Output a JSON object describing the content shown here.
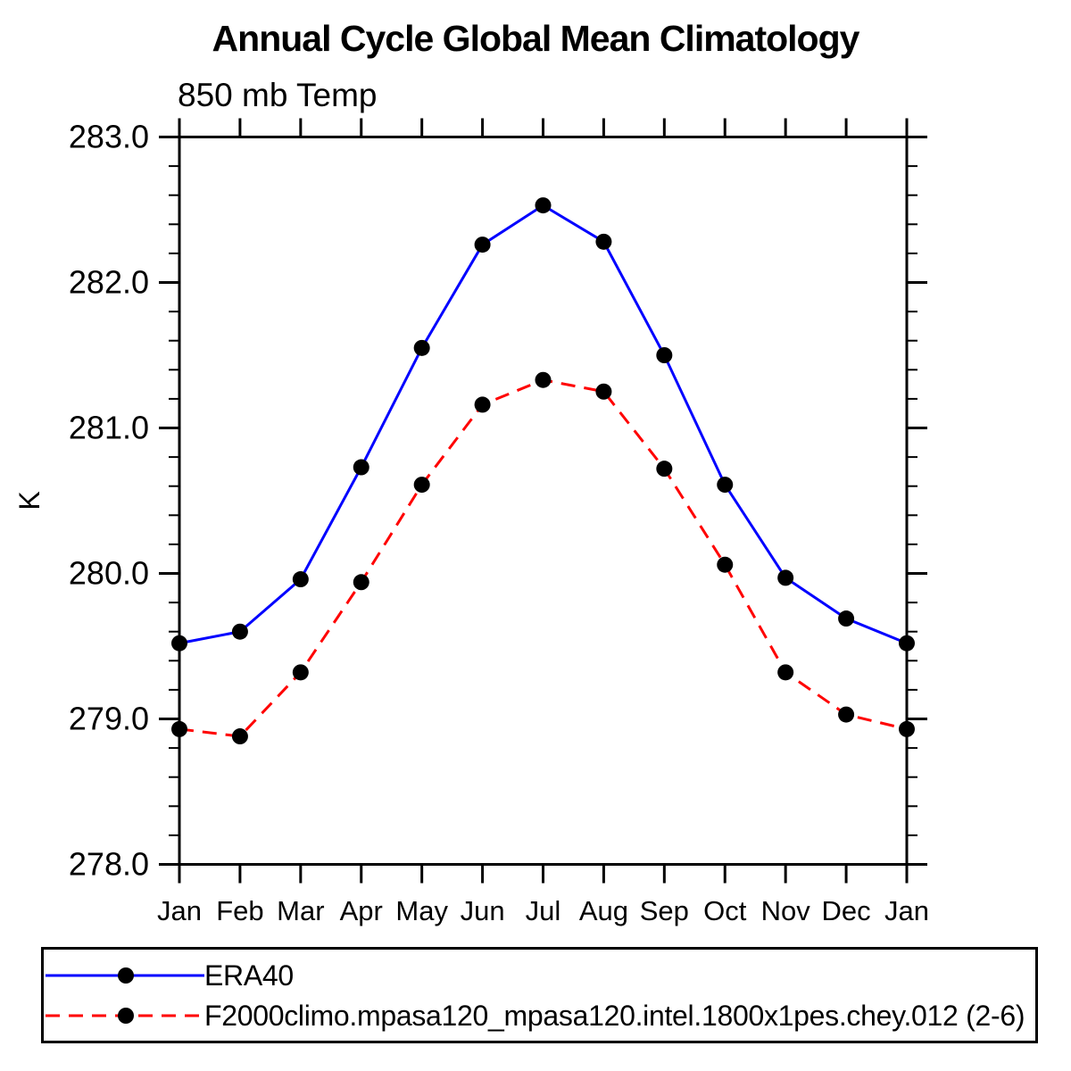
{
  "chart_data": {
    "type": "line",
    "title": "Annual Cycle Global Mean Climatology",
    "subtitle": "850 mb Temp",
    "ylabel": "K",
    "xlabel": "",
    "x_tick_labels": [
      "Jan",
      "Feb",
      "Mar",
      "Apr",
      "May",
      "Jun",
      "Jul",
      "Aug",
      "Sep",
      "Oct",
      "Nov",
      "Dec",
      "Jan"
    ],
    "ylim": [
      278.0,
      283.0
    ],
    "y_major_step": 1.0,
    "y_minor_step": 0.2,
    "y_tick_labels": [
      "278.0",
      "279.0",
      "280.0",
      "281.0",
      "282.0",
      "283.0"
    ],
    "grid": false,
    "legend_position": "bottom",
    "axis_color": "#000000",
    "marker_color": "#000000",
    "series": [
      {
        "name": "ERA40",
        "color": "#0000ff",
        "style": "solid",
        "marker": "circle",
        "values": [
          279.52,
          279.6,
          279.96,
          280.73,
          281.55,
          282.26,
          282.53,
          282.28,
          281.5,
          280.61,
          279.97,
          279.69,
          279.52
        ]
      },
      {
        "name": "F2000climo.mpasa120_mpasa120.intel.1800x1pes.chey.012 (2-6)",
        "color": "#ff0000",
        "style": "dashed",
        "marker": "circle",
        "values": [
          278.93,
          278.88,
          279.32,
          279.94,
          280.61,
          281.16,
          281.33,
          281.25,
          280.72,
          280.06,
          279.32,
          279.03,
          278.93
        ]
      }
    ]
  }
}
